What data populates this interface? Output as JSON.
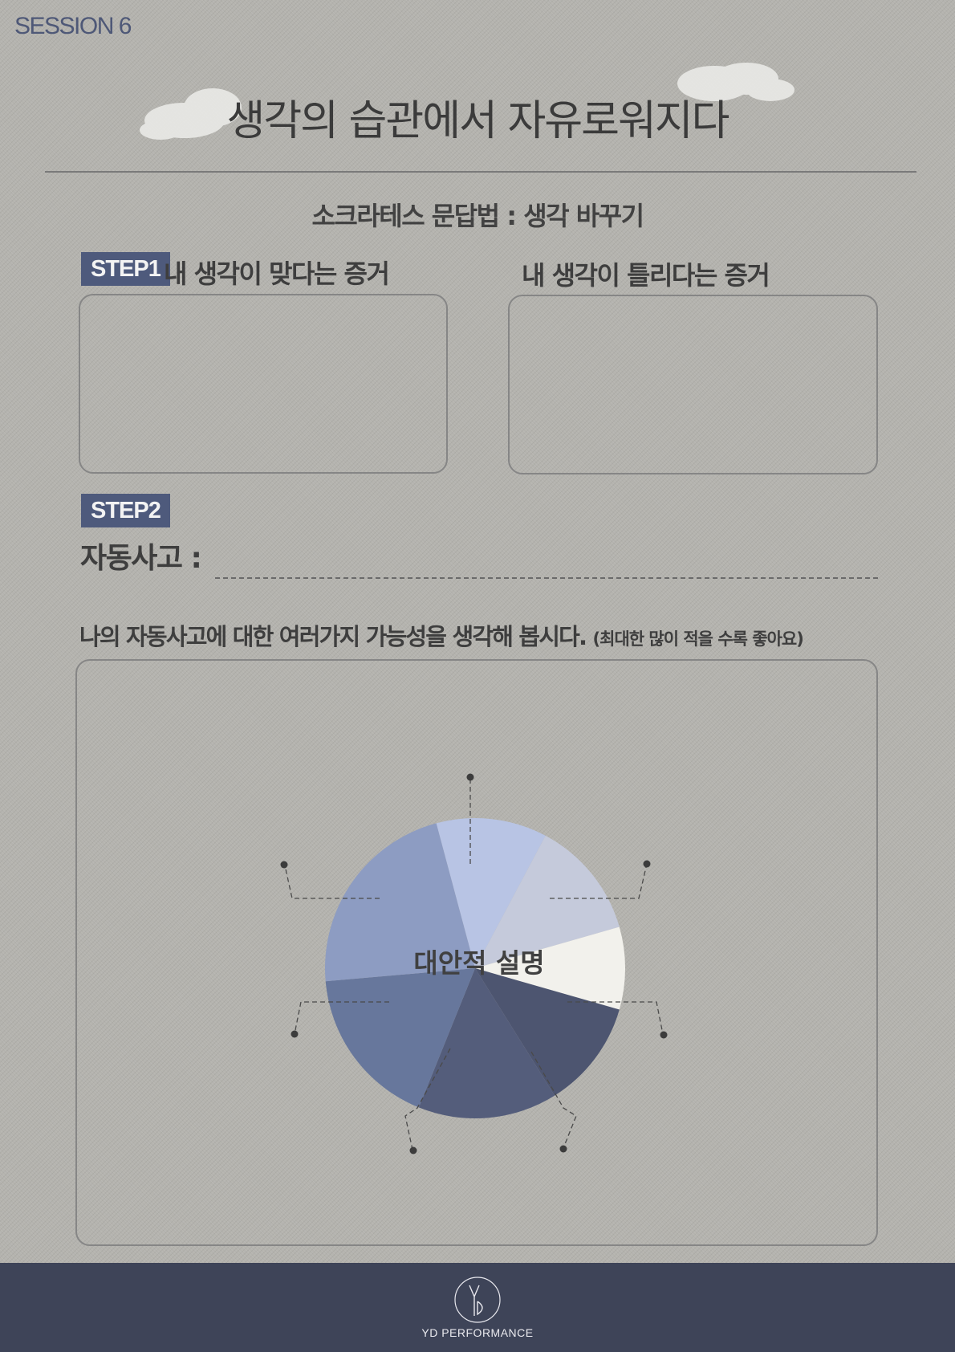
{
  "session": "SESSION 6",
  "title": "생각의 습관에서 자유로워지다",
  "subtitle": "소크라테스 문답법 : 생각 바꾸기",
  "step1": {
    "tag": "STEP1",
    "left_label": "내 생각이 맞다는 증거",
    "right_label": "내 생각이 틀리다는 증거"
  },
  "step2": {
    "tag": "STEP2",
    "auto_thought_label": "자동사고 :"
  },
  "prompt": {
    "text": "나의 자동사고에 대한 여러가지 가능성을 생각해 봅시다.",
    "note": "(최대한 많이 적을 수록 좋아요)"
  },
  "pie": {
    "center_label": "대안적 설명",
    "slice_colors": [
      "#b8c4e4",
      "#c5cadb",
      "#f2f1ec",
      "#4d5570",
      "#545d7b",
      "#67779c",
      "#8d9cc2"
    ]
  },
  "footer": {
    "brand": "YD PERFORMANCE",
    "background_color": "#3e4458",
    "accent_color": "#4e5a7c"
  }
}
